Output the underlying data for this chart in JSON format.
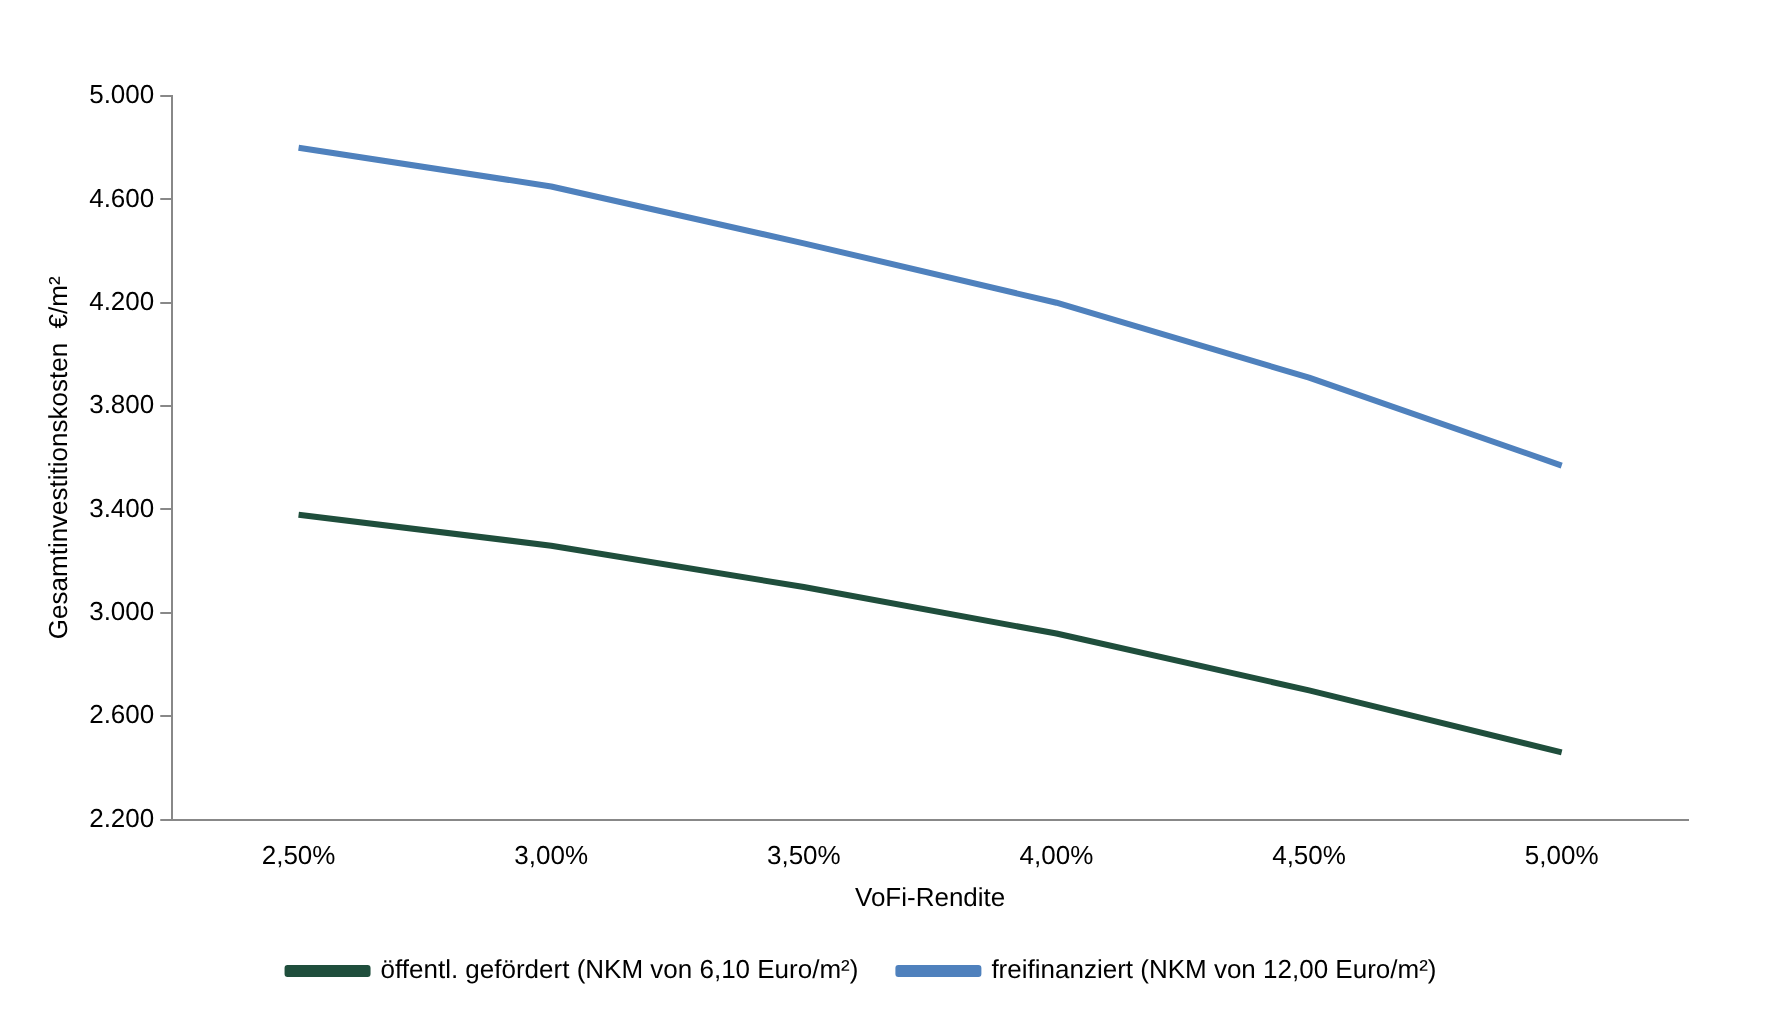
{
  "chart_data": {
    "type": "line",
    "xlabel": "VoFi-Rendite",
    "ylabel": "Gesamtinvestitionskosten  €/m²",
    "categories": [
      "2,50%",
      "3,00%",
      "3,50%",
      "4,00%",
      "4,50%",
      "5,00%"
    ],
    "series": [
      {
        "name": "öffentl. gefördert (NKM von 6,10 Euro/m²)",
        "color": "#1f4e3c",
        "values": [
          3380,
          3260,
          3100,
          2920,
          2700,
          2460
        ]
      },
      {
        "name": "freifinanziert (NKM von 12,00 Euro/m²)",
        "color": "#4f81bd",
        "values": [
          4800,
          4650,
          4430,
          4200,
          3910,
          3570
        ]
      }
    ],
    "ylim": [
      2200,
      5000
    ],
    "yticks": [
      {
        "value": 2200,
        "label": "2.200"
      },
      {
        "value": 2600,
        "label": "2.600"
      },
      {
        "value": 3000,
        "label": "3.000"
      },
      {
        "value": 3400,
        "label": "3.400"
      },
      {
        "value": 3800,
        "label": "3.800"
      },
      {
        "value": 4200,
        "label": "4.200"
      },
      {
        "value": 4600,
        "label": "4.600"
      },
      {
        "value": 5000,
        "label": "5.000"
      }
    ],
    "grid": false,
    "legend": "bottom",
    "marker": "none",
    "line_style": "solid"
  }
}
